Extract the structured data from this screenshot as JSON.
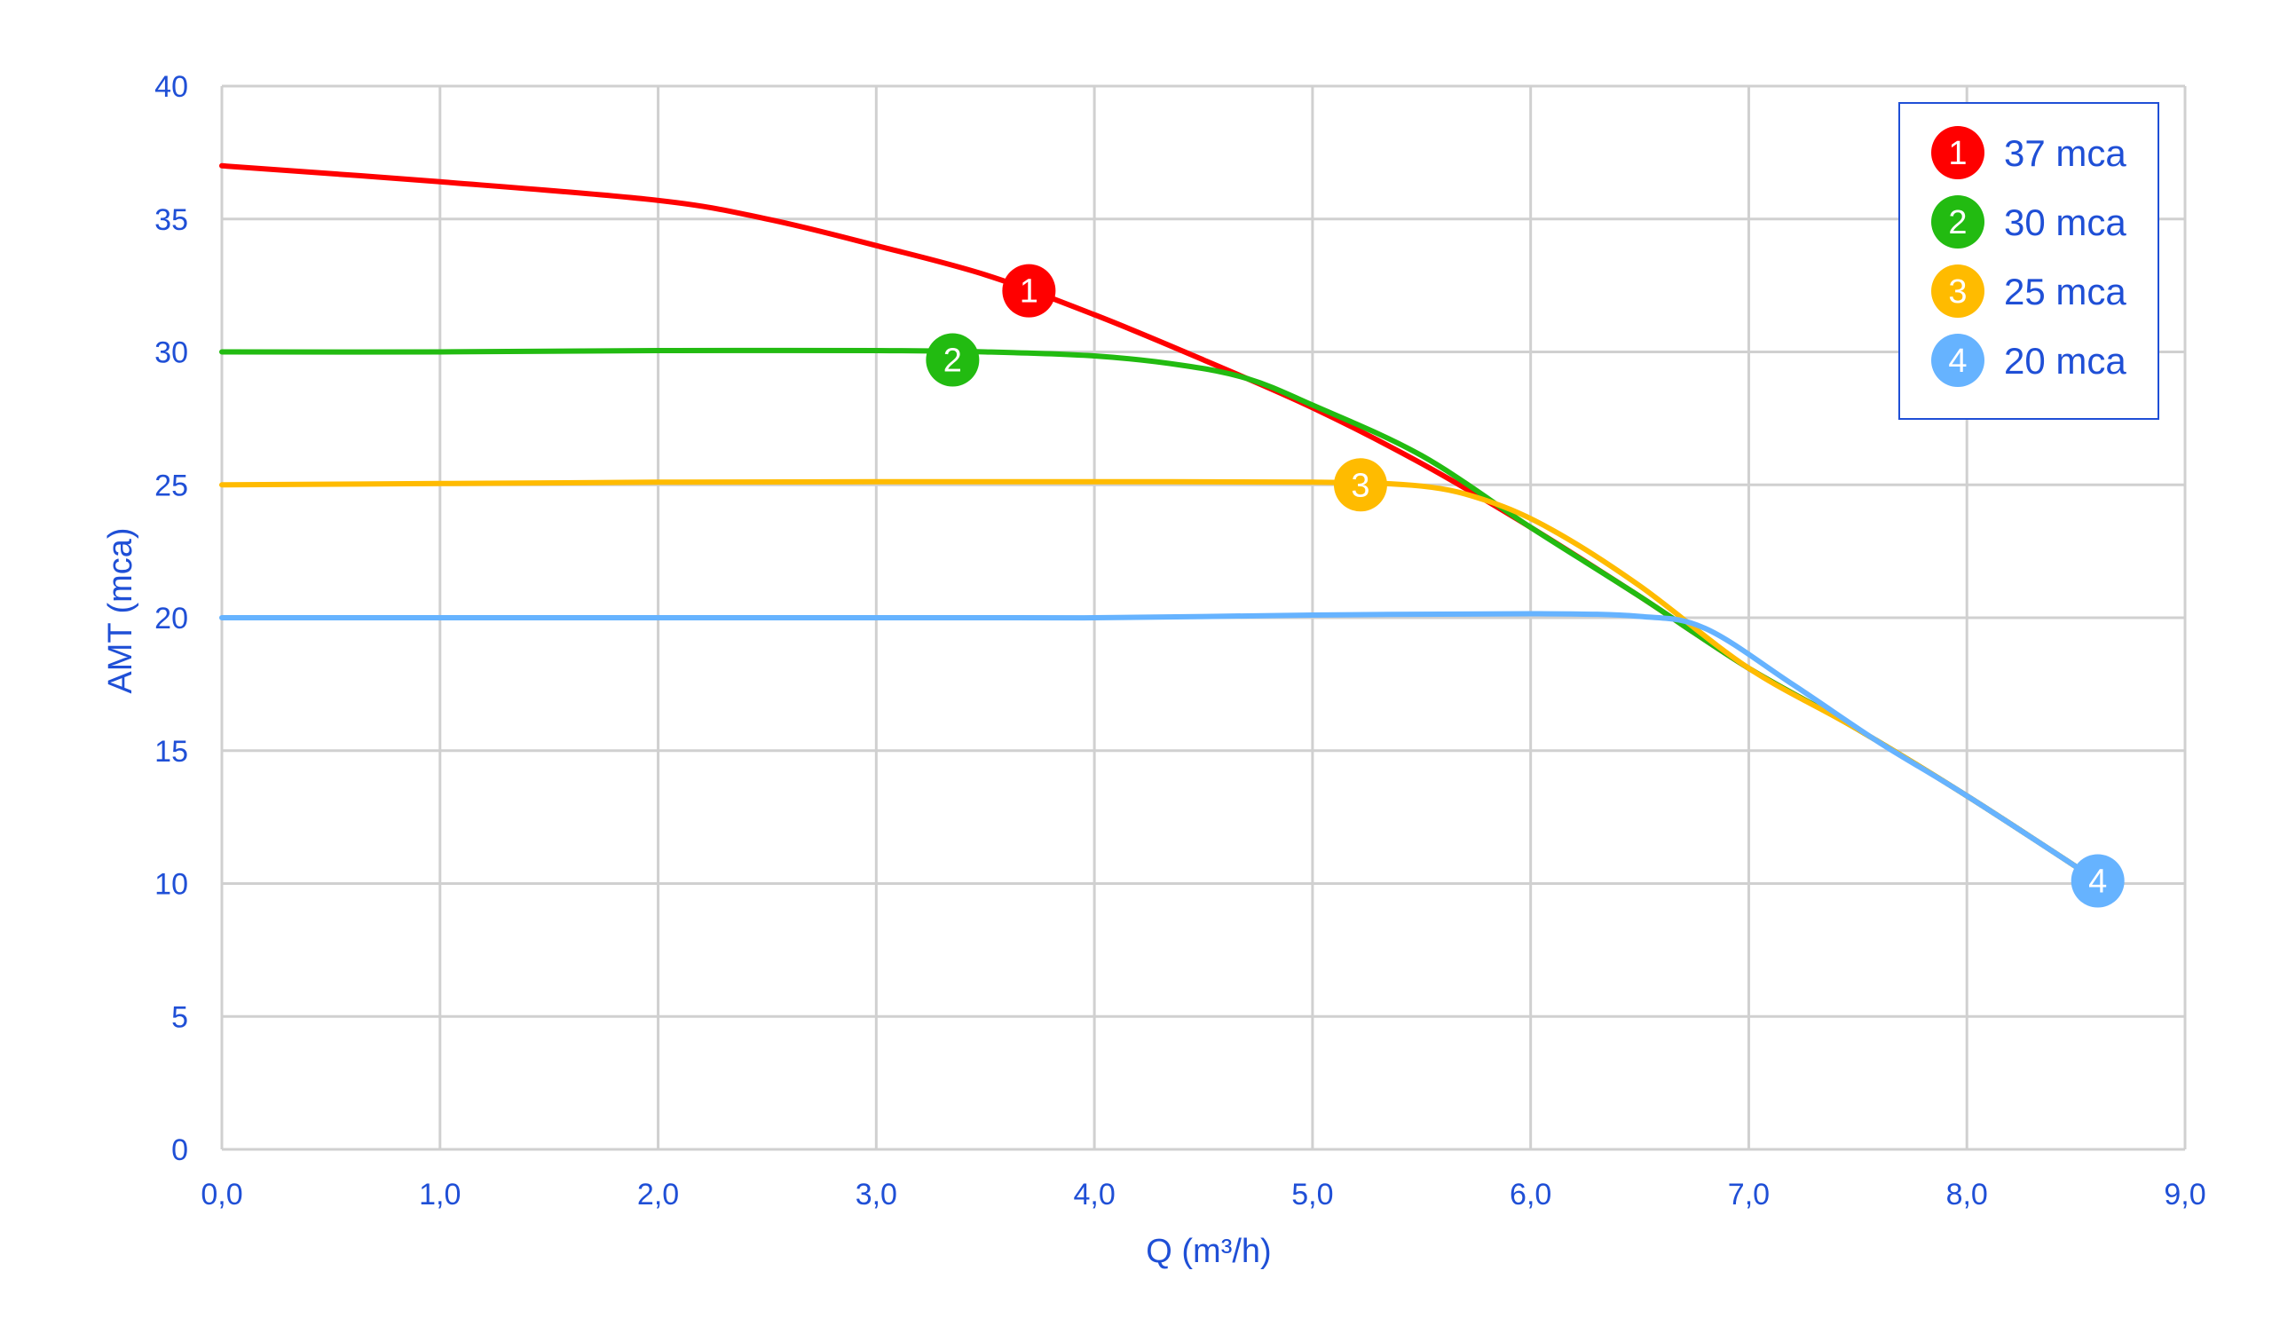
{
  "chart_data": {
    "type": "line",
    "xlabel": "Q (m³/h)",
    "ylabel": "AMT (mca)",
    "xlim": [
      0,
      9
    ],
    "ylim": [
      0,
      40
    ],
    "x_ticks": [
      "0,0",
      "1,0",
      "2,0",
      "3,0",
      "4,0",
      "5,0",
      "6,0",
      "7,0",
      "8,0",
      "9,0"
    ],
    "y_ticks": [
      "0",
      "5",
      "10",
      "15",
      "20",
      "25",
      "30",
      "35",
      "40"
    ],
    "grid": true,
    "legend_position": "top-right",
    "series": [
      {
        "name": "37 mca",
        "marker": "1",
        "color": "#ff0000",
        "marker_point": [
          3.7,
          32.3
        ],
        "points": [
          [
            0,
            37
          ],
          [
            1,
            36.4
          ],
          [
            2,
            35.7
          ],
          [
            2.5,
            35.0
          ],
          [
            3,
            34.0
          ],
          [
            3.5,
            32.9
          ],
          [
            4,
            31.4
          ],
          [
            4.5,
            29.7
          ],
          [
            5,
            27.9
          ],
          [
            5.5,
            25.8
          ],
          [
            6,
            23.4
          ],
          [
            6.5,
            20.8
          ],
          [
            7,
            18.1
          ],
          [
            7.5,
            15.8
          ],
          [
            8,
            13.3
          ],
          [
            8.6,
            10.1
          ]
        ]
      },
      {
        "name": "30 mca",
        "marker": "2",
        "color": "#22bb11",
        "marker_point": [
          3.35,
          29.7
        ],
        "points": [
          [
            0,
            30
          ],
          [
            1,
            30.0
          ],
          [
            2,
            30.05
          ],
          [
            3,
            30.05
          ],
          [
            3.5,
            30.0
          ],
          [
            4,
            29.85
          ],
          [
            4.4,
            29.5
          ],
          [
            4.7,
            29.0
          ],
          [
            5,
            28.0
          ],
          [
            5.5,
            26.1
          ],
          [
            6,
            23.4
          ],
          [
            6.5,
            20.8
          ],
          [
            7,
            18.1
          ],
          [
            7.5,
            15.8
          ],
          [
            8,
            13.3
          ],
          [
            8.6,
            10.1
          ]
        ]
      },
      {
        "name": "25 mca",
        "marker": "3",
        "color": "#ffbb00",
        "marker_point": [
          5.22,
          25.0
        ],
        "points": [
          [
            0,
            25
          ],
          [
            1,
            25.05
          ],
          [
            2,
            25.1
          ],
          [
            3,
            25.12
          ],
          [
            4,
            25.12
          ],
          [
            5,
            25.1
          ],
          [
            5.5,
            24.95
          ],
          [
            5.8,
            24.4
          ],
          [
            6.1,
            23.3
          ],
          [
            6.5,
            21.2
          ],
          [
            7,
            18.1
          ],
          [
            7.5,
            15.8
          ],
          [
            8,
            13.3
          ],
          [
            8.6,
            10.1
          ]
        ]
      },
      {
        "name": "20 mca",
        "marker": "4",
        "color": "#66b3ff",
        "marker_point": [
          8.6,
          10.1
        ],
        "points": [
          [
            0,
            20
          ],
          [
            1,
            20.0
          ],
          [
            2,
            20.0
          ],
          [
            3,
            20.0
          ],
          [
            4,
            20.0
          ],
          [
            5,
            20.1
          ],
          [
            6,
            20.15
          ],
          [
            6.5,
            20.05
          ],
          [
            6.8,
            19.6
          ],
          [
            7.2,
            17.5
          ],
          [
            7.6,
            15.3
          ],
          [
            8,
            13.3
          ],
          [
            8.6,
            10.1
          ]
        ]
      }
    ]
  },
  "colors": {
    "axis_text": "#1f4fd6",
    "grid": "#d0d0d0",
    "legend_border": "#1f4fd6"
  }
}
